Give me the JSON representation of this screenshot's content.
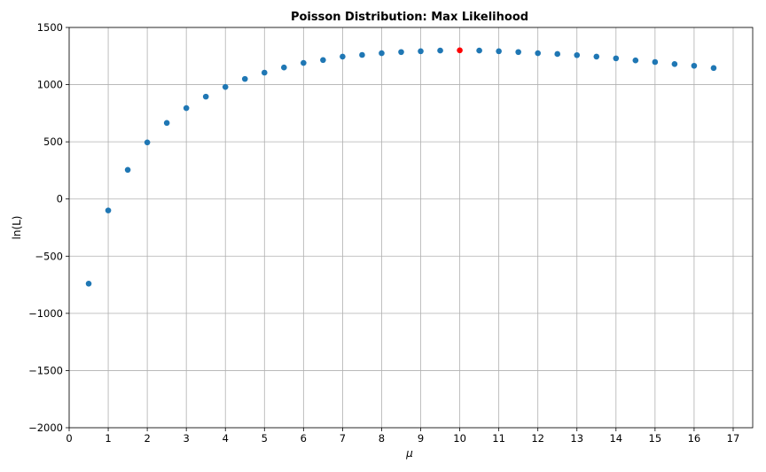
{
  "chart_data": {
    "type": "scatter",
    "title": "Poisson Distribution: Max Likelihood",
    "xlabel": "μ",
    "ylabel": "ln(L)",
    "xlim": [
      0,
      17.5
    ],
    "ylim": [
      -2000,
      1500
    ],
    "xticks": [
      0,
      1,
      2,
      3,
      4,
      5,
      6,
      7,
      8,
      9,
      10,
      11,
      12,
      13,
      14,
      15,
      16,
      17
    ],
    "yticks": [
      -2000,
      -1500,
      -1000,
      -500,
      0,
      500,
      1000,
      1500
    ],
    "ytick_labels": [
      "−2000",
      "−1500",
      "−1000",
      "−500",
      "0",
      "500",
      "1000",
      "1500"
    ],
    "grid": true,
    "series": [
      {
        "color": "#1f77b4",
        "x": [
          0.5,
          1,
          1.5,
          2,
          2.5,
          3,
          3.5,
          4,
          4.5,
          5,
          5.5,
          6,
          6.5,
          7,
          7.5,
          8,
          8.5,
          9,
          9.5,
          10.5,
          11,
          11.5,
          12,
          12.5,
          13,
          13.5,
          14,
          14.5,
          15,
          15.5,
          16,
          16.5
        ],
        "y": [
          -740,
          -100,
          255,
          495,
          665,
          795,
          895,
          980,
          1050,
          1105,
          1150,
          1190,
          1215,
          1245,
          1260,
          1275,
          1285,
          1292,
          1298,
          1298,
          1292,
          1285,
          1275,
          1268,
          1258,
          1245,
          1230,
          1212,
          1198,
          1180,
          1165,
          1145
        ]
      },
      {
        "color": "#ff0000",
        "x": [
          10
        ],
        "y": [
          1300
        ]
      }
    ]
  }
}
